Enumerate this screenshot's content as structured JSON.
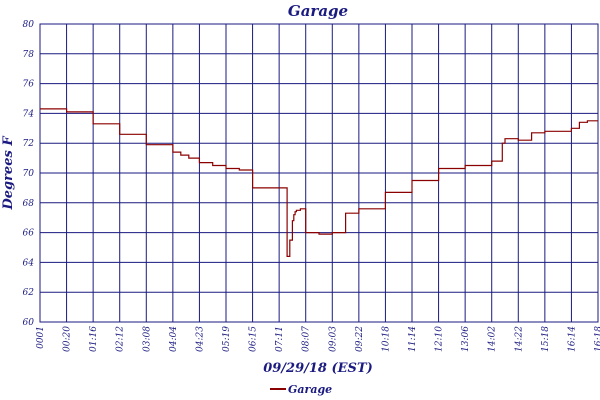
{
  "chart_data": {
    "type": "line",
    "title": "Garage",
    "xlabel": "09/29/18 (EST)",
    "ylabel": "Degrees F",
    "ylim": [
      60,
      80
    ],
    "yticks": [
      "80",
      "78",
      "76",
      "74",
      "72",
      "70",
      "68",
      "66",
      "64",
      "62",
      "60"
    ],
    "xticks": [
      "0001",
      "00:20",
      "01:16",
      "02:12",
      "03:08",
      "04:04",
      "04:23",
      "05:19",
      "06:15",
      "07:11",
      "08:07",
      "09:03",
      "09:22",
      "10:18",
      "11:14",
      "12:10",
      "13:06",
      "14:02",
      "14:22",
      "15:18",
      "16:14",
      "16:18"
    ],
    "grid": true,
    "legend_position": "bottom-center",
    "series": [
      {
        "name": "Garage",
        "color": "#8b0000",
        "x": [
          0,
          1,
          2,
          3,
          4,
          5,
          5.3,
          5.6,
          6,
          6.5,
          7,
          7.5,
          8,
          8.5,
          9,
          9.3,
          9.4,
          9.5,
          9.55,
          9.6,
          9.65,
          9.8,
          10,
          10.5,
          11,
          11.5,
          12,
          13,
          14,
          15,
          16,
          17,
          17.4,
          17.5,
          18,
          18.5,
          19,
          20,
          20.3,
          20.6,
          20.8,
          21
        ],
        "y": [
          74.3,
          74.1,
          73.3,
          72.6,
          71.9,
          71.4,
          71.2,
          71.0,
          70.7,
          70.5,
          70.3,
          70.2,
          69.0,
          69.0,
          69.0,
          64.4,
          65.5,
          66.8,
          67.2,
          67.4,
          67.5,
          67.6,
          66.0,
          65.9,
          66.0,
          67.3,
          67.6,
          68.7,
          69.5,
          70.3,
          70.5,
          70.8,
          72.0,
          72.3,
          72.2,
          72.7,
          72.8,
          73.0,
          73.4,
          73.5,
          73.5,
          73.5
        ]
      }
    ]
  }
}
